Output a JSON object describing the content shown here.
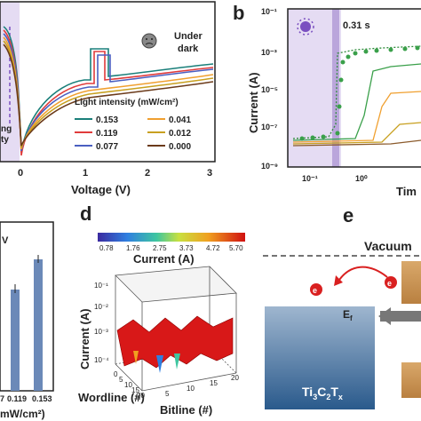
{
  "panels": {
    "b": "b",
    "d": "d",
    "e": "e"
  },
  "panel_a": {
    "annotation_dark": [
      "Under",
      "dark"
    ],
    "legend_title": "Light intensity (mW/cm²)",
    "legend": [
      {
        "label": "0.153",
        "color": "#1a7f7a"
      },
      {
        "label": "0.119",
        "color": "#e03b3b"
      },
      {
        "label": "0.077",
        "color": "#4a5fc1"
      },
      {
        "label": "0.041",
        "color": "#f0a030"
      },
      {
        "label": "0.012",
        "color": "#c8a020"
      },
      {
        "label": "0.000",
        "color": "#6b3a1a"
      }
    ],
    "left_partial": [
      "ng",
      "ty"
    ],
    "xlabel": "Voltage (V)",
    "xticks": [
      "0",
      "1",
      "2",
      "3"
    ]
  },
  "panel_b": {
    "marker_label": "0.31 s",
    "ylabel": "Current (A)",
    "xlabel_partial": "Tim",
    "yticks": [
      "10⁻¹",
      "10⁻³",
      "10⁻⁵",
      "10⁻⁷",
      "10⁻⁹"
    ],
    "xticks": [
      "10⁻¹",
      "10⁰"
    ]
  },
  "panel_c": {
    "legend_partial": "V",
    "xticks": [
      "7",
      "0.119",
      "0.153"
    ],
    "xlabel_partial": "mW/cm²)"
  },
  "panel_d": {
    "colorbar_ticks": [
      "0.78",
      "1.76",
      "2.75",
      "3.73",
      "4.72",
      "5.70"
    ],
    "colorbar_label": "Current (A)",
    "zlabel": "Current (A)",
    "zticks": [
      "10⁻¹",
      "10⁻²",
      "10⁻³",
      "10⁻⁴"
    ],
    "xlabel": "Wordline (#)",
    "ylabel": "Bitline (#)",
    "wordline_ticks": [
      "0",
      "5",
      "10",
      "15",
      "20"
    ],
    "bitline_ticks": [
      "5",
      "10",
      "15",
      "20"
    ]
  },
  "panel_e": {
    "vacuum": "Vacuum",
    "electron": "e",
    "electron2": "e",
    "fermi": "E",
    "fermi_sub": "f",
    "material": "Ti",
    "material_sub1": "3",
    "material_c": "C",
    "material_sub2": "2",
    "material_t": "T",
    "material_sub3": "x"
  }
}
